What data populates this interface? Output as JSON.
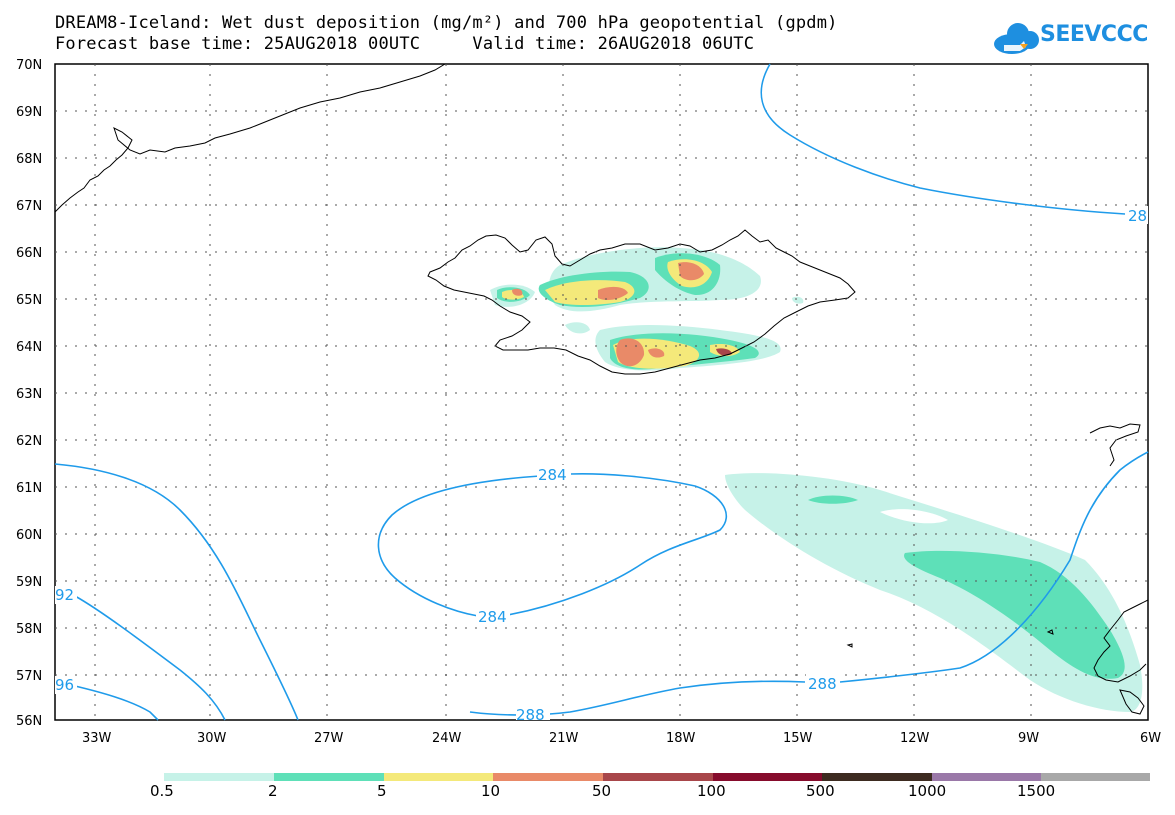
{
  "header": {
    "title_line1": "DREAM8-Iceland: Wet dust deposition (mg/m²) and 700 hPa geopotential (gpdm)",
    "title_line2": "Forecast base time: 25AUG2018 00UTC     Valid time: 26AUG2018 06UTC",
    "logo_text": "SEEVCCC"
  },
  "map": {
    "lat_labels": [
      "70N",
      "69N",
      "68N",
      "67N",
      "66N",
      "65N",
      "64N",
      "63N",
      "62N",
      "61N",
      "60N",
      "59N",
      "58N",
      "57N",
      "56N"
    ],
    "lon_labels": [
      "33W",
      "30W",
      "27W",
      "24W",
      "21W",
      "18W",
      "15W",
      "12W",
      "9W",
      "6W"
    ],
    "contour_labels": [
      "284",
      "284",
      "288",
      "288",
      "28",
      "92",
      "96"
    ],
    "contour_color": "#1f9bea"
  },
  "legend": {
    "colors": [
      "#c6f2e8",
      "#5ee0b8",
      "#f4e97a",
      "#e98a68",
      "#a8464a",
      "#860b2c",
      "#3d2b20",
      "#9a78a8",
      "#a8a8a8"
    ],
    "labels": [
      "0.5",
      "2",
      "5",
      "10",
      "50",
      "100",
      "500",
      "1000",
      "1500"
    ]
  }
}
